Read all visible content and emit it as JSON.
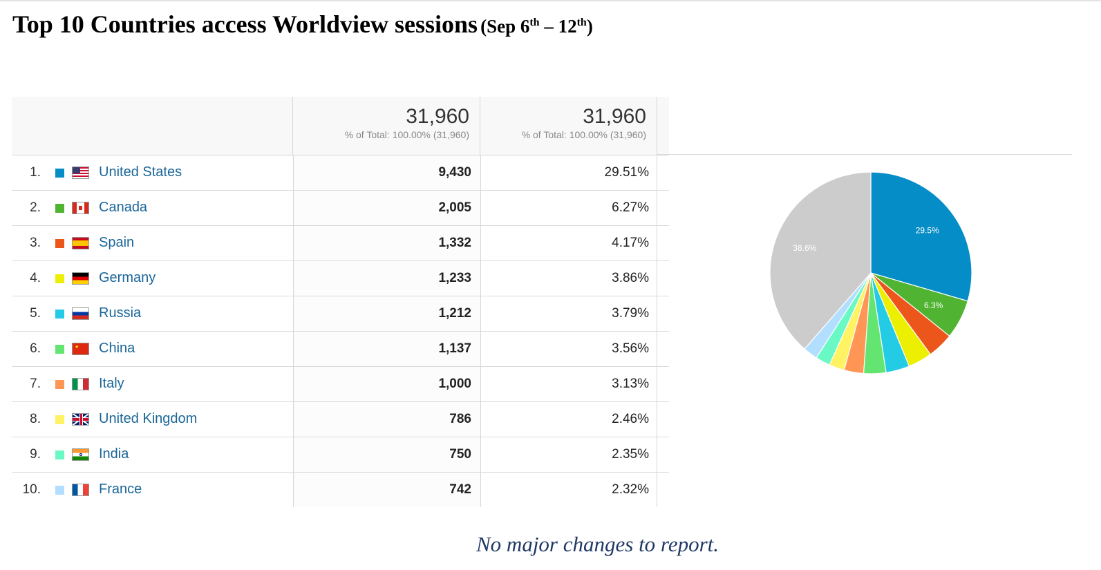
{
  "title": {
    "main": "Top 10 Countries access Worldview sessions",
    "range_open": "(Sep 6",
    "range_sup1": "th",
    "range_mid": " – 12",
    "range_sup2": "th",
    "range_close": ")"
  },
  "table": {
    "sessions_total": "31,960",
    "sessions_sub": "% of Total: 100.00% (31,960)",
    "share_total": "31,960",
    "share_sub": "% of Total: 100.00% (31,960)"
  },
  "footer": "No major changes to report.",
  "chart_data": {
    "type": "pie",
    "categories": [
      "United States",
      "Canada",
      "Spain",
      "Germany",
      "Russia",
      "China",
      "Italy",
      "United Kingdom",
      "India",
      "France"
    ],
    "values": [
      9430,
      2005,
      1332,
      1233,
      1212,
      1137,
      1000,
      786,
      750,
      742
    ],
    "slices": [
      {
        "rank": "1.",
        "country": "United States",
        "sessions": "9,430",
        "pct": "29.51%",
        "share": 29.51,
        "label": "29.5%",
        "color": "#058dc7",
        "flag": "us"
      },
      {
        "rank": "2.",
        "country": "Canada",
        "sessions": "2,005",
        "pct": "6.27%",
        "share": 6.27,
        "label": "6.3%",
        "color": "#50b432",
        "flag": "ca"
      },
      {
        "rank": "3.",
        "country": "Spain",
        "sessions": "1,332",
        "pct": "4.17%",
        "share": 4.17,
        "label": "",
        "color": "#ed561b",
        "flag": "es"
      },
      {
        "rank": "4.",
        "country": "Germany",
        "sessions": "1,233",
        "pct": "3.86%",
        "share": 3.86,
        "label": "",
        "color": "#edef00",
        "flag": "de"
      },
      {
        "rank": "5.",
        "country": "Russia",
        "sessions": "1,212",
        "pct": "3.79%",
        "share": 3.79,
        "label": "",
        "color": "#24cbe5",
        "flag": "ru"
      },
      {
        "rank": "6.",
        "country": "China",
        "sessions": "1,137",
        "pct": "3.56%",
        "share": 3.56,
        "label": "",
        "color": "#64e572",
        "flag": "cn"
      },
      {
        "rank": "7.",
        "country": "Italy",
        "sessions": "1,000",
        "pct": "3.13%",
        "share": 3.13,
        "label": "",
        "color": "#ff9655",
        "flag": "it"
      },
      {
        "rank": "8.",
        "country": "United Kingdom",
        "sessions": "786",
        "pct": "2.46%",
        "share": 2.46,
        "label": "",
        "color": "#fff263",
        "flag": "gb"
      },
      {
        "rank": "9.",
        "country": "India",
        "sessions": "750",
        "pct": "2.35%",
        "share": 2.35,
        "label": "",
        "color": "#6af9c4",
        "flag": "in"
      },
      {
        "rank": "10.",
        "country": "France",
        "sessions": "742",
        "pct": "2.32%",
        "share": 2.32,
        "label": "",
        "color": "#b2deff",
        "flag": "fr"
      }
    ],
    "other": {
      "share": 38.6,
      "label": "38.6%",
      "color": "#cccccc"
    }
  }
}
